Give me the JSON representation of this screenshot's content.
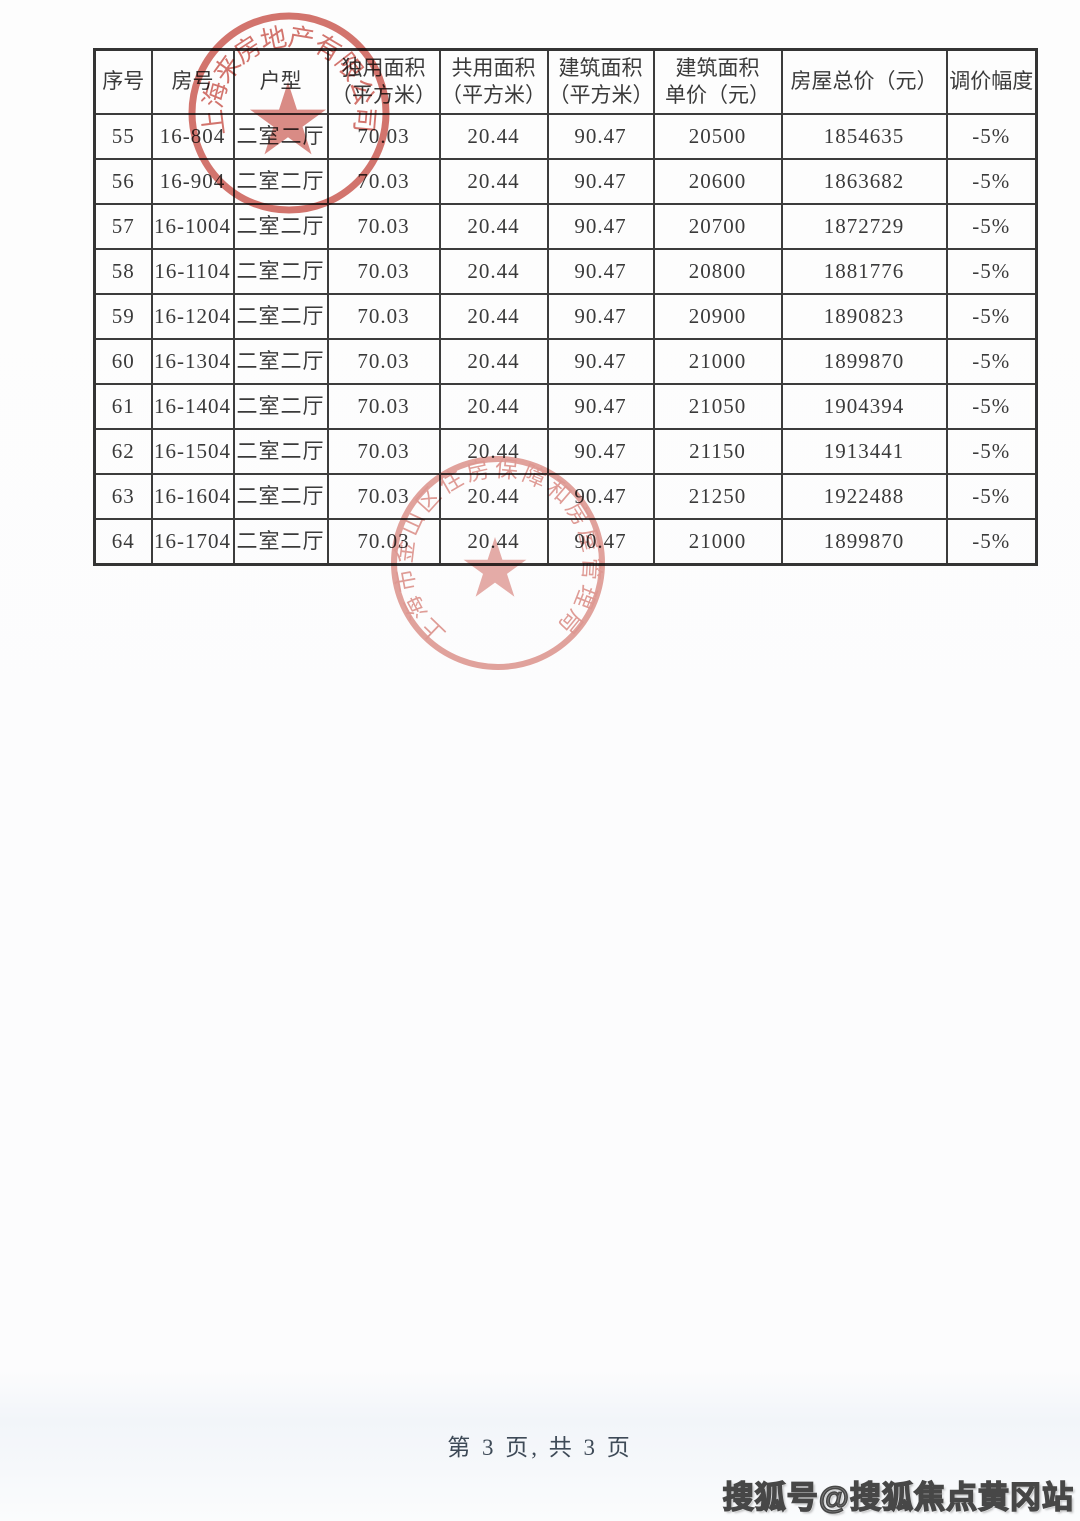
{
  "table": {
    "columns": [
      "序号",
      "房号",
      "户型",
      "独用面积\n（平方米）",
      "共用面积\n（平方米）",
      "建筑面积\n（平方米）",
      "建筑面积\n单价（元）",
      "房屋总价（元）",
      "调价幅度"
    ],
    "rows": [
      [
        "55",
        "16-804",
        "二室二厅",
        "70.03",
        "20.44",
        "90.47",
        "20500",
        "1854635",
        "-5%"
      ],
      [
        "56",
        "16-904",
        "二室二厅",
        "70.03",
        "20.44",
        "90.47",
        "20600",
        "1863682",
        "-5%"
      ],
      [
        "57",
        "16-1004",
        "二室二厅",
        "70.03",
        "20.44",
        "90.47",
        "20700",
        "1872729",
        "-5%"
      ],
      [
        "58",
        "16-1104",
        "二室二厅",
        "70.03",
        "20.44",
        "90.47",
        "20800",
        "1881776",
        "-5%"
      ],
      [
        "59",
        "16-1204",
        "二室二厅",
        "70.03",
        "20.44",
        "90.47",
        "20900",
        "1890823",
        "-5%"
      ],
      [
        "60",
        "16-1304",
        "二室二厅",
        "70.03",
        "20.44",
        "90.47",
        "21000",
        "1899870",
        "-5%"
      ],
      [
        "61",
        "16-1404",
        "二室二厅",
        "70.03",
        "20.44",
        "90.47",
        "21050",
        "1904394",
        "-5%"
      ],
      [
        "62",
        "16-1504",
        "二室二厅",
        "70.03",
        "20.44",
        "90.47",
        "21150",
        "1913441",
        "-5%"
      ],
      [
        "63",
        "16-1604",
        "二室二厅",
        "70.03",
        "20.44",
        "90.47",
        "21250",
        "1922488",
        "-5%"
      ],
      [
        "64",
        "16-1704",
        "二室二厅",
        "70.03",
        "20.44",
        "90.47",
        "21000",
        "1899870",
        "-5%"
      ]
    ]
  },
  "stamps": {
    "top": {
      "text": "上海来房地产有限公司",
      "color": "#c23b31"
    },
    "bottom": {
      "text": "上海市金山区住房保障和房屋管理局",
      "color": "#cd5a50"
    }
  },
  "footer": {
    "text": "第 3 页, 共 3 页"
  },
  "watermark": {
    "text": "搜狐号@搜狐焦点黄冈站"
  },
  "colors": {
    "table_border": "#3c3c3c",
    "stamp_red": "#c23b31"
  }
}
